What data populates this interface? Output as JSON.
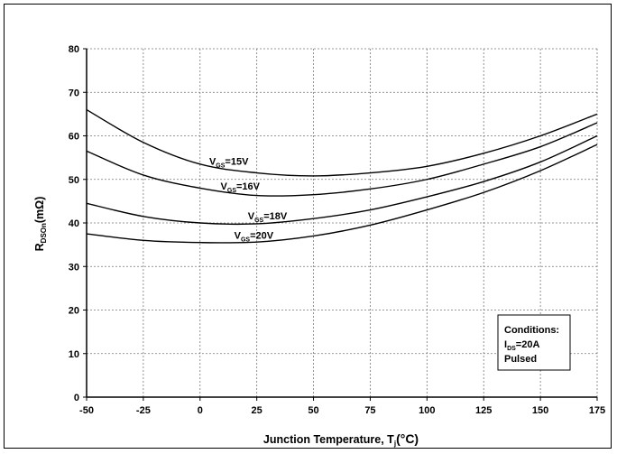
{
  "chart_data": {
    "type": "line",
    "xlabel": {
      "main": "Junction Temperature, T",
      "sub": "j",
      "unit": "(°C)"
    },
    "ylabel": {
      "main": "R",
      "sub": "DSOn",
      "unit": "(mΩ)"
    },
    "xlim": [
      -50,
      175
    ],
    "ylim": [
      0,
      80
    ],
    "xticks": [
      -50,
      -25,
      0,
      25,
      50,
      75,
      100,
      125,
      150,
      175
    ],
    "yticks": [
      0,
      10,
      20,
      30,
      40,
      50,
      60,
      70,
      80
    ],
    "grid": true,
    "x": [
      -50,
      -25,
      0,
      25,
      50,
      75,
      100,
      125,
      150,
      175
    ],
    "series": [
      {
        "name": {
          "main": "V",
          "sub": "GS",
          "rest": "=15V"
        },
        "values": [
          66,
          58.5,
          53.5,
          51.5,
          50.8,
          51.5,
          53,
          56,
          60,
          65
        ]
      },
      {
        "name": {
          "main": "V",
          "sub": "GS",
          "rest": "=16V"
        },
        "values": [
          56.5,
          51,
          48,
          46.3,
          46.5,
          47.8,
          50,
          53.5,
          57.5,
          63
        ]
      },
      {
        "name": {
          "main": "V",
          "sub": "GS",
          "rest": "=18V"
        },
        "values": [
          44.5,
          41.5,
          40,
          39.8,
          41,
          43,
          46,
          49.5,
          54,
          60
        ]
      },
      {
        "name": {
          "main": "V",
          "sub": "GS",
          "rest": "=20V"
        },
        "values": [
          37.5,
          36,
          35.5,
          35.6,
          37,
          39.5,
          43,
          47,
          52,
          58
        ]
      }
    ],
    "conditions": {
      "title": "Conditions:",
      "line1": {
        "main": "I",
        "sub": "DS",
        "rest": "=20A"
      },
      "line2": "Pulsed"
    }
  }
}
